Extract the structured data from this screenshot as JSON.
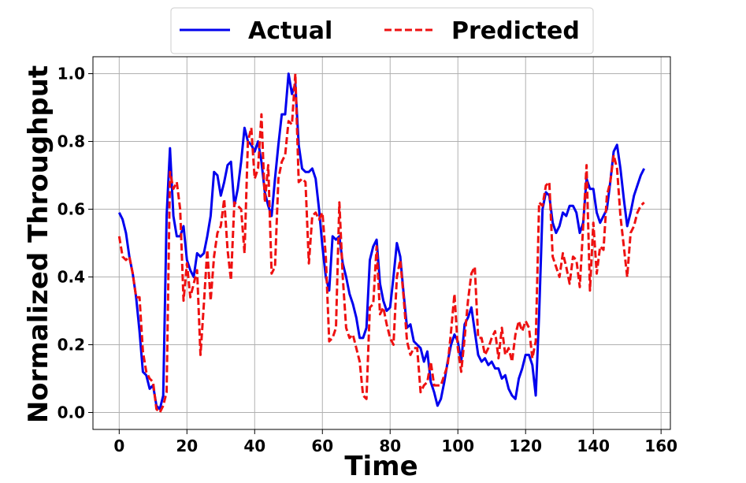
{
  "chart_data": {
    "type": "line",
    "xlabel": "Time",
    "ylabel": "Normalized Throughput",
    "xlim": [
      -7.75,
      162.75
    ],
    "ylim": [
      -0.05,
      1.05
    ],
    "xticks": [
      0,
      20,
      40,
      60,
      80,
      100,
      120,
      140,
      160
    ],
    "yticks": [
      0.0,
      0.2,
      0.4,
      0.6,
      0.8,
      1.0
    ],
    "xtick_labels": [
      "0",
      "20",
      "40",
      "60",
      "80",
      "100",
      "120",
      "140",
      "160"
    ],
    "ytick_labels": [
      "0.0",
      "0.2",
      "0.4",
      "0.6",
      "0.8",
      "1.0"
    ],
    "grid": true,
    "legend_position": "top-center",
    "series": [
      {
        "name": "Actual",
        "color": "#0000ee",
        "style": "solid",
        "x": [
          0,
          1,
          2,
          3,
          4,
          5,
          6,
          7,
          8,
          9,
          10,
          11,
          12,
          13,
          14,
          15,
          16,
          17,
          18,
          19,
          20,
          21,
          22,
          23,
          24,
          25,
          26,
          27,
          28,
          29,
          30,
          31,
          32,
          33,
          34,
          35,
          36,
          37,
          38,
          39,
          40,
          41,
          42,
          43,
          44,
          45,
          46,
          47,
          48,
          49,
          50,
          51,
          52,
          53,
          54,
          55,
          56,
          57,
          58,
          59,
          60,
          61,
          62,
          63,
          64,
          65,
          66,
          67,
          68,
          69,
          70,
          71,
          72,
          73,
          74,
          75,
          76,
          77,
          78,
          79,
          80,
          81,
          82,
          83,
          84,
          85,
          86,
          87,
          88,
          89,
          90,
          91,
          92,
          93,
          94,
          95,
          96,
          97,
          98,
          99,
          100,
          101,
          102,
          103,
          104,
          105,
          106,
          107,
          108,
          109,
          110,
          111,
          112,
          113,
          114,
          115,
          116,
          117,
          118,
          119,
          120,
          121,
          122,
          123,
          124,
          125,
          126,
          127,
          128,
          129,
          130,
          131,
          132,
          133,
          134,
          135,
          136,
          137,
          138,
          139,
          140,
          141,
          142,
          143,
          144,
          145,
          146,
          147,
          148,
          149,
          150,
          151,
          152,
          153,
          154,
          155
        ],
        "y": [
          0.59,
          0.57,
          0.53,
          0.46,
          0.41,
          0.34,
          0.24,
          0.12,
          0.11,
          0.07,
          0.08,
          0.02,
          0.01,
          0.05,
          0.58,
          0.78,
          0.58,
          0.52,
          0.52,
          0.55,
          0.45,
          0.42,
          0.4,
          0.47,
          0.46,
          0.47,
          0.52,
          0.58,
          0.71,
          0.7,
          0.64,
          0.68,
          0.73,
          0.74,
          0.61,
          0.66,
          0.74,
          0.84,
          0.8,
          0.79,
          0.77,
          0.8,
          0.74,
          0.65,
          0.61,
          0.58,
          0.69,
          0.79,
          0.88,
          0.88,
          1.0,
          0.94,
          0.97,
          0.79,
          0.72,
          0.71,
          0.71,
          0.72,
          0.69,
          0.6,
          0.49,
          0.4,
          0.36,
          0.52,
          0.51,
          0.52,
          0.44,
          0.4,
          0.35,
          0.32,
          0.28,
          0.22,
          0.22,
          0.25,
          0.45,
          0.49,
          0.51,
          0.38,
          0.33,
          0.3,
          0.31,
          0.4,
          0.5,
          0.46,
          0.35,
          0.25,
          0.26,
          0.21,
          0.2,
          0.19,
          0.15,
          0.18,
          0.09,
          0.06,
          0.02,
          0.04,
          0.09,
          0.15,
          0.2,
          0.23,
          0.21,
          0.15,
          0.26,
          0.28,
          0.31,
          0.24,
          0.17,
          0.15,
          0.16,
          0.14,
          0.15,
          0.13,
          0.13,
          0.1,
          0.11,
          0.07,
          0.05,
          0.04,
          0.1,
          0.13,
          0.17,
          0.17,
          0.14,
          0.05,
          0.29,
          0.6,
          0.65,
          0.64,
          0.56,
          0.53,
          0.55,
          0.59,
          0.58,
          0.61,
          0.61,
          0.59,
          0.53,
          0.56,
          0.69,
          0.66,
          0.66,
          0.59,
          0.56,
          0.58,
          0.6,
          0.68,
          0.77,
          0.79,
          0.72,
          0.63,
          0.55,
          0.59,
          0.64,
          0.67,
          0.7,
          0.72
        ]
      },
      {
        "name": "Predicted",
        "color": "#ee1111",
        "style": "dashed",
        "x": [
          0,
          1,
          2,
          3,
          4,
          5,
          6,
          7,
          8,
          9,
          10,
          11,
          12,
          13,
          14,
          15,
          16,
          17,
          18,
          19,
          20,
          21,
          22,
          23,
          24,
          25,
          26,
          27,
          28,
          29,
          30,
          31,
          32,
          33,
          34,
          35,
          36,
          37,
          38,
          39,
          40,
          41,
          42,
          43,
          44,
          45,
          46,
          47,
          48,
          49,
          50,
          51,
          52,
          53,
          54,
          55,
          56,
          57,
          58,
          59,
          60,
          61,
          62,
          63,
          64,
          65,
          66,
          67,
          68,
          69,
          70,
          71,
          72,
          73,
          74,
          75,
          76,
          77,
          78,
          79,
          80,
          81,
          82,
          83,
          84,
          85,
          86,
          87,
          88,
          89,
          90,
          91,
          92,
          93,
          94,
          95,
          96,
          97,
          98,
          99,
          100,
          101,
          102,
          103,
          104,
          105,
          106,
          107,
          108,
          109,
          110,
          111,
          112,
          113,
          114,
          115,
          116,
          117,
          118,
          119,
          120,
          121,
          122,
          123,
          124,
          125,
          126,
          127,
          128,
          129,
          130,
          131,
          132,
          133,
          134,
          135,
          136,
          137,
          138,
          139,
          140,
          141,
          142,
          143,
          144,
          145,
          146,
          147,
          148,
          149,
          150,
          151,
          152,
          153,
          154,
          155
        ],
        "y": [
          0.52,
          0.46,
          0.45,
          0.46,
          0.41,
          0.34,
          0.34,
          0.18,
          0.12,
          0.1,
          0.09,
          0.01,
          0.0,
          0.02,
          0.06,
          0.71,
          0.66,
          0.68,
          0.6,
          0.33,
          0.44,
          0.34,
          0.38,
          0.42,
          0.17,
          0.32,
          0.48,
          0.33,
          0.46,
          0.53,
          0.55,
          0.63,
          0.48,
          0.39,
          0.62,
          0.61,
          0.6,
          0.47,
          0.8,
          0.84,
          0.69,
          0.72,
          0.88,
          0.62,
          0.73,
          0.41,
          0.43,
          0.69,
          0.74,
          0.76,
          0.86,
          0.85,
          1.0,
          0.68,
          0.69,
          0.68,
          0.44,
          0.58,
          0.59,
          0.57,
          0.59,
          0.46,
          0.21,
          0.22,
          0.25,
          0.62,
          0.4,
          0.25,
          0.22,
          0.23,
          0.19,
          0.15,
          0.05,
          0.04,
          0.31,
          0.32,
          0.49,
          0.29,
          0.31,
          0.26,
          0.22,
          0.2,
          0.4,
          0.45,
          0.34,
          0.21,
          0.17,
          0.19,
          0.19,
          0.06,
          0.08,
          0.09,
          0.15,
          0.08,
          0.08,
          0.08,
          0.11,
          0.14,
          0.24,
          0.35,
          0.19,
          0.12,
          0.22,
          0.33,
          0.41,
          0.43,
          0.22,
          0.22,
          0.17,
          0.19,
          0.22,
          0.24,
          0.16,
          0.25,
          0.17,
          0.19,
          0.15,
          0.23,
          0.27,
          0.24,
          0.27,
          0.25,
          0.16,
          0.21,
          0.62,
          0.61,
          0.67,
          0.68,
          0.46,
          0.43,
          0.4,
          0.47,
          0.43,
          0.38,
          0.46,
          0.45,
          0.37,
          0.55,
          0.73,
          0.36,
          0.56,
          0.41,
          0.49,
          0.48,
          0.64,
          0.68,
          0.76,
          0.72,
          0.58,
          0.49,
          0.4,
          0.53,
          0.55,
          0.59,
          0.61,
          0.62
        ]
      }
    ]
  }
}
